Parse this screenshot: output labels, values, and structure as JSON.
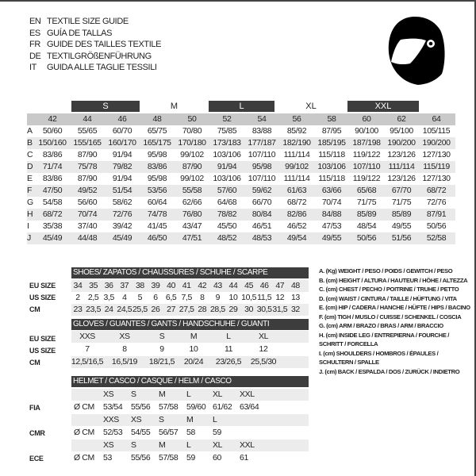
{
  "titles": [
    {
      "code": "EN",
      "text": "TEXTILE SIZE GUIDE"
    },
    {
      "code": "ES",
      "text": "GUÍA DE TALLAS"
    },
    {
      "code": "FR",
      "text": "GUIDE DES TAILLES TEXTILE"
    },
    {
      "code": "DE",
      "text": "TEXTILGRÖßENFÜHRUNG"
    },
    {
      "code": "IT",
      "text": "GUIDA ALLE TAGLIE TESSILI"
    }
  ],
  "icon": "helmet-icon",
  "colors": {
    "dark_band": "#3d3d3d",
    "header_gray": "#c9c9c9",
    "row_gray": "#e9e9e9"
  },
  "size_groups": [
    "S",
    "M",
    "L",
    "XL",
    "XXL"
  ],
  "textile": {
    "columns": [
      "42",
      "44",
      "46",
      "48",
      "50",
      "52",
      "54",
      "56",
      "58",
      "60",
      "62",
      "64"
    ],
    "rows": [
      {
        "label": "A",
        "values": [
          "50/60",
          "55/65",
          "60/70",
          "65/75",
          "70/80",
          "75/85",
          "83/88",
          "85/92",
          "87/95",
          "90/100",
          "95/100",
          "105/115"
        ]
      },
      {
        "label": "B",
        "values": [
          "150/160",
          "155/165",
          "160/170",
          "165/175",
          "170/180",
          "173/183",
          "177/187",
          "182/190",
          "185/195",
          "187/198",
          "190/200",
          "190/200"
        ]
      },
      {
        "label": "C",
        "values": [
          "83/86",
          "87/90",
          "91/94",
          "95/98",
          "99/102",
          "103/106",
          "107/110",
          "111/114",
          "115/118",
          "119/122",
          "123/126",
          "127/130"
        ]
      },
      {
        "label": "D",
        "values": [
          "71/74",
          "75/78",
          "79/82",
          "83/86",
          "87/90",
          "91/94",
          "95/98",
          "99/102",
          "103/106",
          "107/110",
          "111/114",
          "115/119"
        ]
      },
      {
        "label": "E",
        "values": [
          "83/86",
          "87/90",
          "91/94",
          "95/98",
          "99/102",
          "103/106",
          "107/110",
          "111/114",
          "115/118",
          "119/122",
          "123/126",
          "127/130"
        ]
      },
      {
        "label": "F",
        "values": [
          "47/50",
          "49/52",
          "51/54",
          "53/56",
          "55/58",
          "57/60",
          "59/62",
          "61/63",
          "63/66",
          "65/68",
          "67/70",
          "68/72"
        ]
      },
      {
        "label": "G",
        "values": [
          "54/58",
          "56/60",
          "58/62",
          "60/64",
          "62/66",
          "64/68",
          "66/70",
          "68/72",
          "70/74",
          "71/75",
          "71/75",
          "72/76"
        ]
      },
      {
        "label": "H",
        "values": [
          "68/72",
          "70/74",
          "72/76",
          "74/78",
          "76/80",
          "78/82",
          "80/84",
          "82/86",
          "84/88",
          "85/89",
          "85/89",
          "87/91"
        ]
      },
      {
        "label": "I",
        "values": [
          "35/38",
          "37/40",
          "39/42",
          "41/45",
          "43/47",
          "45/50",
          "46/51",
          "46/52",
          "47/53",
          "48/54",
          "49/55",
          "50/56"
        ]
      },
      {
        "label": "J",
        "values": [
          "45/49",
          "44/48",
          "45/49",
          "46/50",
          "47/51",
          "48/52",
          "48/53",
          "49/54",
          "49/55",
          "50/56",
          "51/56",
          "52/58"
        ]
      }
    ]
  },
  "shoes": {
    "title": "SHOES/ ZAPATOS / CHAUSSURES / SCHUHE / SCARPE",
    "rows": [
      {
        "label": "EU SIZE",
        "values": [
          "34",
          "35",
          "36",
          "37",
          "38",
          "39",
          "40",
          "41",
          "42",
          "43",
          "44",
          "45",
          "46",
          "47",
          "48"
        ]
      },
      {
        "label": "US SIZE",
        "values": [
          "2",
          "2,5",
          "3,5",
          "4",
          "5",
          "6",
          "6,5",
          "7,5",
          "8",
          "9",
          "10",
          "10,5",
          "11,5",
          "12",
          "13"
        ]
      },
      {
        "label": "CM",
        "values": [
          "23",
          "23,5",
          "24",
          "24,5",
          "25,5",
          "26",
          "27",
          "27,5",
          "28",
          "28,5",
          "29",
          "30",
          "30,5",
          "31,5",
          "32"
        ]
      }
    ]
  },
  "gloves": {
    "title": "GLOVES / GUANTES / GANTS / HANDSCHUHE / GUANTI",
    "labels": [
      "EU SIZE",
      "US SIZE",
      "CM"
    ],
    "rows": [
      [
        "XXS",
        "XS",
        "S",
        "M",
        "L",
        "XL"
      ],
      [
        "7",
        "8",
        "9",
        "10",
        "11",
        "12"
      ],
      [
        "12,5/16,5",
        "16,5/19",
        "18/21,5",
        "20/24",
        "23/26,5",
        "25,5/30"
      ]
    ]
  },
  "helmet": {
    "title": "HELMET / CASCO / CASQUE / HELM / CASCO",
    "unit": "Ø CM",
    "standards": [
      {
        "name": "FIA",
        "sizes": [
          "XS",
          "S",
          "M",
          "L",
          "XL",
          "XXL"
        ],
        "values": [
          "53/54",
          "55/56",
          "57/58",
          "59/60",
          "61/62",
          "63/64"
        ]
      },
      {
        "name": "CMR",
        "sizes": [
          "XXS",
          "XS",
          "S",
          "M",
          "L"
        ],
        "values": [
          "52/53",
          "54/55",
          "56/57",
          "58",
          "59"
        ]
      },
      {
        "name": "ECE",
        "sizes": [
          "XS",
          "S",
          "M",
          "L",
          "XL",
          "XXL"
        ],
        "values": [
          "53",
          "55/56",
          "57/58",
          "59",
          "60",
          "61"
        ]
      }
    ]
  },
  "legend": [
    "A. (Kg) WEIGHT / PESO / POIDS / GEWITCH / PESO",
    "B. (cm) HEIGHT / ALTURA / HAUTEUR / HÖHE / ALTEZZA",
    "C. (cm) CHEST / PECHO / POITRINE / TRUHE / PETTO",
    "D. (cm) WAIST / CINTURA / TAILLE / HÜFTUNG / VITA",
    "E. (cm) HIP / CADERA / HANCHE / HÜFTE / HIPS /  BACINO",
    "F.  (cm) TIGH / MUSLO / CUISSE / SCHENKEL / COSCIA",
    "G. (cm) ARM  / BRAZO / BRAS / ARM / BRACCIO",
    "H. (cm) INSIDE LEG / ENTREPIERNA / FOURCHE /",
    "SCHRITT / FORCELLA",
    "I.  (cm) SHOULDERS / HOMBROS / ÉPAULES /",
    "SCHULTERN / SPALLE",
    "J. (cm) BACK / ESPALDA / DOS / ZURÜCK / INDIETRO"
  ]
}
